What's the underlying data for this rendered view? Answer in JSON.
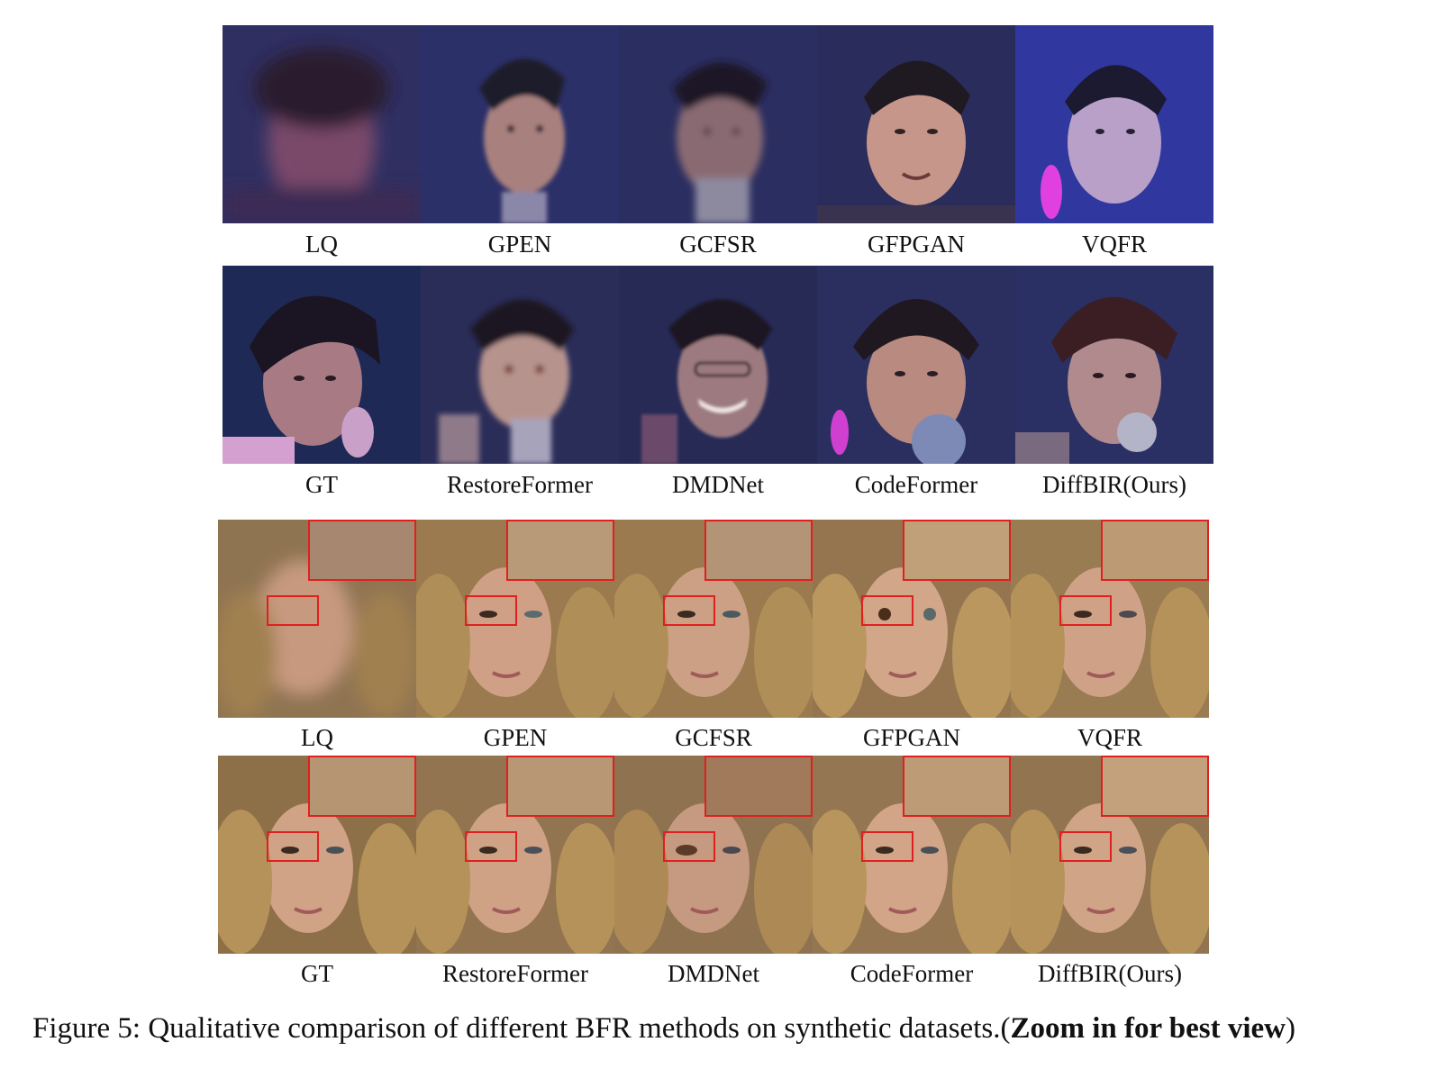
{
  "figure": {
    "caption_prefix": "Figure 5:",
    "caption_text": " Qualitative comparison of different BFR methods on synthetic datasets.(",
    "caption_bold": "Zoom in for best view",
    "caption_suffix": ")"
  },
  "panel_a": {
    "row1_labels": [
      "LQ",
      "GPEN",
      "GCFSR",
      "GFPGAN",
      "VQFR"
    ],
    "row2_labels": [
      "GT",
      "RestoreFormer",
      "DMDNet",
      "CodeFormer",
      "DiffBIR(Ours)"
    ]
  },
  "panel_b": {
    "row1_labels": [
      "LQ",
      "GPEN",
      "GCFSR",
      "GFPGAN",
      "VQFR"
    ],
    "row2_labels": [
      "GT",
      "RestoreFormer",
      "DMDNet",
      "CodeFormer",
      "DiffBIR(Ours)"
    ]
  },
  "colors": {
    "stage_bg": "#2a2f66",
    "stage_glow": "#6a4fd0",
    "skin_a": "#c99a88",
    "hair_dark": "#1e1a2a",
    "gold_hair": "#b8955a",
    "skin_b": "#d4a685",
    "zoom_box": "#e02020"
  }
}
